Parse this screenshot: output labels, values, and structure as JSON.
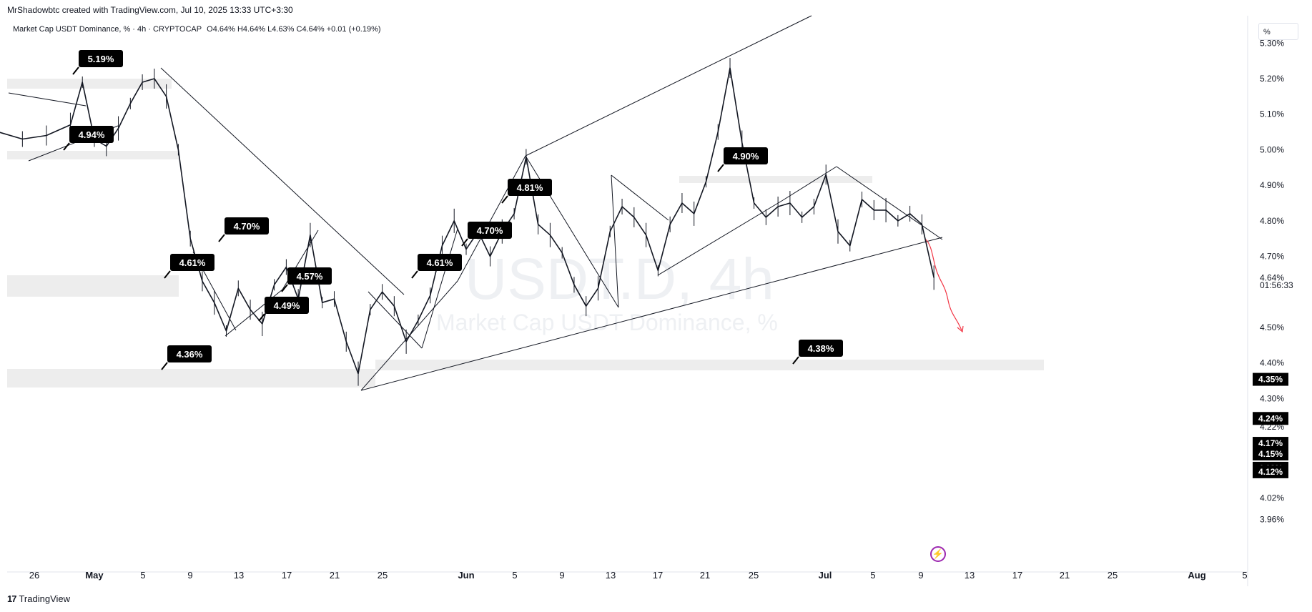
{
  "header": {
    "credit": "MrShadowbtc created with TradingView.com, Jul 10, 2025 13:33 UTC+3:30",
    "symbol": "Market Cap USDT Dominance, % · 4h · CRYPTOCAP",
    "ohlc": "O4.64% H4.64% L4.63% C4.64% +0.01 (+0.19%)",
    "scale_toggle": "%"
  },
  "watermark": {
    "symbol": "USDT.D, 4h",
    "name": "Market Cap USDT Dominance, %"
  },
  "footer": {
    "brand": "TradingView",
    "logo_icon": "tradingview-logo-icon",
    "alert_icon": "lightning-alert-icon"
  },
  "chart_data": {
    "type": "line",
    "title": "Market Cap USDT Dominance, %",
    "ylabel": "%",
    "ylim": [
      3.96,
      5.3
    ],
    "y_ticks": [
      "5.30%",
      "5.20%",
      "5.10%",
      "5.00%",
      "4.90%",
      "4.80%",
      "4.70%",
      "4.64%",
      "4.50%",
      "4.40%",
      "4.30%",
      "4.22%",
      "4.02%",
      "3.96%"
    ],
    "x_ticks": [
      "26",
      "May",
      "5",
      "9",
      "13",
      "17",
      "21",
      "25",
      "Jun",
      "5",
      "9",
      "13",
      "17",
      "21",
      "25",
      "Jul",
      "5",
      "9",
      "13",
      "17",
      "21",
      "25",
      "Aug",
      "5"
    ],
    "countdown": "01:56:33",
    "last_price": 4.64,
    "price_tags": [
      "4.35%",
      "4.24%",
      "4.17%",
      "4.15%",
      "4.12%",
      "4.12%"
    ],
    "series": [
      {
        "values": [
          [
            "2025-04-23",
            5.05
          ],
          [
            "2025-04-25",
            5.03
          ],
          [
            "2025-04-27",
            5.04
          ],
          [
            "2025-04-29",
            5.07
          ],
          [
            "2025-04-30",
            5.19
          ],
          [
            "2025-05-01",
            5.03
          ],
          [
            "2025-05-02",
            5.01
          ],
          [
            "2025-05-03",
            5.06
          ],
          [
            "2025-05-04",
            5.13
          ],
          [
            "2025-05-05",
            5.19
          ],
          [
            "2025-05-06",
            5.2
          ],
          [
            "2025-05-07",
            5.15
          ],
          [
            "2025-05-08",
            5.0
          ],
          [
            "2025-05-09",
            4.75
          ],
          [
            "2025-05-10",
            4.63
          ],
          [
            "2025-05-11",
            4.57
          ],
          [
            "2025-05-12",
            4.49
          ],
          [
            "2025-05-13",
            4.61
          ],
          [
            "2025-05-14",
            4.55
          ],
          [
            "2025-05-15",
            4.51
          ],
          [
            "2025-05-16",
            4.62
          ],
          [
            "2025-05-17",
            4.67
          ],
          [
            "2025-05-18",
            4.58
          ],
          [
            "2025-05-19",
            4.76
          ],
          [
            "2025-05-20",
            4.57
          ],
          [
            "2025-05-21",
            4.58
          ],
          [
            "2025-05-22",
            4.46
          ],
          [
            "2025-05-23",
            4.37
          ],
          [
            "2025-05-24",
            4.55
          ],
          [
            "2025-05-25",
            4.6
          ],
          [
            "2025-05-26",
            4.56
          ],
          [
            "2025-05-27",
            4.46
          ],
          [
            "2025-05-28",
            4.52
          ],
          [
            "2025-05-29",
            4.59
          ],
          [
            "2025-05-30",
            4.73
          ],
          [
            "2025-05-31",
            4.8
          ],
          [
            "2025-06-01",
            4.72
          ],
          [
            "2025-06-02",
            4.77
          ],
          [
            "2025-06-03",
            4.7
          ],
          [
            "2025-06-04",
            4.77
          ],
          [
            "2025-06-05",
            4.82
          ],
          [
            "2025-06-06",
            4.98
          ],
          [
            "2025-06-07",
            4.79
          ],
          [
            "2025-06-08",
            4.76
          ],
          [
            "2025-06-09",
            4.71
          ],
          [
            "2025-06-10",
            4.62
          ],
          [
            "2025-06-11",
            4.56
          ],
          [
            "2025-06-12",
            4.61
          ],
          [
            "2025-06-13",
            4.77
          ],
          [
            "2025-06-14",
            4.84
          ],
          [
            "2025-06-15",
            4.81
          ],
          [
            "2025-06-16",
            4.76
          ],
          [
            "2025-06-17",
            4.66
          ],
          [
            "2025-06-18",
            4.79
          ],
          [
            "2025-06-19",
            4.85
          ],
          [
            "2025-06-20",
            4.82
          ],
          [
            "2025-06-21",
            4.91
          ],
          [
            "2025-06-22",
            5.05
          ],
          [
            "2025-06-23",
            5.23
          ],
          [
            "2025-06-24",
            5.02
          ],
          [
            "2025-06-25",
            4.85
          ],
          [
            "2025-06-26",
            4.81
          ],
          [
            "2025-06-27",
            4.84
          ],
          [
            "2025-06-28",
            4.85
          ],
          [
            "2025-06-29",
            4.81
          ],
          [
            "2025-06-30",
            4.84
          ],
          [
            "2025-07-01",
            4.93
          ],
          [
            "2025-07-02",
            4.77
          ],
          [
            "2025-07-03",
            4.73
          ],
          [
            "2025-07-04",
            4.86
          ],
          [
            "2025-07-05",
            4.83
          ],
          [
            "2025-07-06",
            4.83
          ],
          [
            "2025-07-07",
            4.8
          ],
          [
            "2025-07-08",
            4.82
          ],
          [
            "2025-07-09",
            4.79
          ],
          [
            "2025-07-10",
            4.64
          ]
        ]
      }
    ],
    "annotations": [
      "5.19%",
      "4.94%",
      "4.70%",
      "4.61%",
      "4.57%",
      "4.49%",
      "4.36%",
      "4.61%",
      "4.70%",
      "4.81%",
      "4.90%",
      "4.38%"
    ]
  }
}
